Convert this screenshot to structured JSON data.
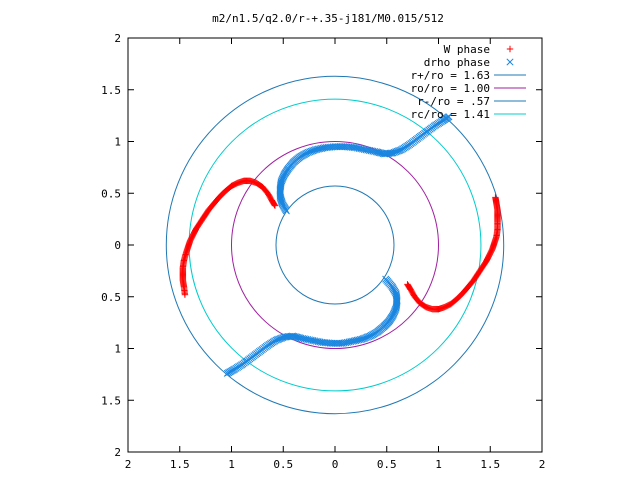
{
  "chart_data": {
    "type": "scatter",
    "title": "m2/n1.5/q2.0/r-+.35-j181/M0.015/512",
    "xlim": [
      -2,
      2
    ],
    "ylim": [
      -2,
      2
    ],
    "x_ticks": [
      {
        "value": -2,
        "label": "2"
      },
      {
        "value": -1.5,
        "label": "1.5"
      },
      {
        "value": -1,
        "label": "1"
      },
      {
        "value": -0.5,
        "label": "0.5"
      },
      {
        "value": 0,
        "label": "0"
      },
      {
        "value": 0.5,
        "label": "0.5"
      },
      {
        "value": 1,
        "label": "1"
      },
      {
        "value": 1.5,
        "label": "1.5"
      },
      {
        "value": 2,
        "label": "2"
      }
    ],
    "y_ticks": [
      {
        "value": 2,
        "label": "2"
      },
      {
        "value": 1.5,
        "label": "1.5"
      },
      {
        "value": 1,
        "label": "1"
      },
      {
        "value": 0.5,
        "label": "0.5"
      },
      {
        "value": 0,
        "label": "0"
      },
      {
        "value": -0.5,
        "label": "0.5"
      },
      {
        "value": -1,
        "label": "1"
      },
      {
        "value": -1.5,
        "label": "1.5"
      },
      {
        "value": -2,
        "label": "2"
      }
    ],
    "grid": false,
    "legend_position": "top-right",
    "circles": [
      {
        "name": "r+/ro = 1.63",
        "radius": 1.63,
        "color": "#1f78b4"
      },
      {
        "name": "ro/ro = 1.00",
        "radius": 1.0,
        "color": "#a020a0"
      },
      {
        "name": "r-/ro = .57",
        "radius": 0.57,
        "color": "#1f78b4"
      },
      {
        "name": "rc/ro = 1.41",
        "radius": 1.41,
        "color": "#00cccc"
      }
    ],
    "series": [
      {
        "name": "W phase",
        "marker": "+",
        "color": "#ff0000",
        "arms": [
          [
            [
              -1.45,
              -0.48
            ],
            [
              -1.46,
              -0.4
            ],
            [
              -1.47,
              -0.34
            ],
            [
              -1.47,
              -0.28
            ],
            [
              -1.47,
              -0.22
            ],
            [
              -1.46,
              -0.15
            ],
            [
              -1.44,
              -0.08
            ],
            [
              -1.42,
              -0.02
            ],
            [
              -1.4,
              0.04
            ],
            [
              -1.37,
              0.1
            ],
            [
              -1.34,
              0.16
            ],
            [
              -1.3,
              0.22
            ],
            [
              -1.26,
              0.28
            ],
            [
              -1.22,
              0.34
            ],
            [
              -1.17,
              0.4
            ],
            [
              -1.12,
              0.46
            ],
            [
              -1.06,
              0.52
            ],
            [
              -1.0,
              0.57
            ],
            [
              -0.94,
              0.6
            ],
            [
              -0.88,
              0.62
            ],
            [
              -0.82,
              0.62
            ],
            [
              -0.76,
              0.6
            ],
            [
              -0.7,
              0.56
            ],
            [
              -0.65,
              0.5
            ],
            [
              -0.61,
              0.43
            ],
            [
              -0.58,
              0.38
            ]
          ],
          [
            [
              1.55,
              0.46
            ],
            [
              1.56,
              0.4
            ],
            [
              1.57,
              0.34
            ],
            [
              1.57,
              0.28
            ],
            [
              1.57,
              0.22
            ],
            [
              1.57,
              0.15
            ],
            [
              1.56,
              0.08
            ],
            [
              1.54,
              0.02
            ],
            [
              1.52,
              -0.04
            ],
            [
              1.49,
              -0.1
            ],
            [
              1.46,
              -0.16
            ],
            [
              1.42,
              -0.22
            ],
            [
              1.38,
              -0.28
            ],
            [
              1.34,
              -0.34
            ],
            [
              1.29,
              -0.4
            ],
            [
              1.24,
              -0.46
            ],
            [
              1.18,
              -0.52
            ],
            [
              1.12,
              -0.57
            ],
            [
              1.06,
              -0.6
            ],
            [
              1.0,
              -0.62
            ],
            [
              0.94,
              -0.62
            ],
            [
              0.88,
              -0.6
            ],
            [
              0.82,
              -0.56
            ],
            [
              0.77,
              -0.5
            ],
            [
              0.73,
              -0.43
            ],
            [
              0.7,
              -0.38
            ]
          ]
        ]
      },
      {
        "name": "drho phase",
        "marker": "x",
        "color": "#1a86e0",
        "arms": [
          [
            [
              -0.47,
              0.33
            ],
            [
              -0.51,
              0.4
            ],
            [
              -0.53,
              0.47
            ],
            [
              -0.53,
              0.54
            ],
            [
              -0.52,
              0.61
            ],
            [
              -0.49,
              0.68
            ],
            [
              -0.45,
              0.74
            ],
            [
              -0.4,
              0.8
            ],
            [
              -0.34,
              0.85
            ],
            [
              -0.27,
              0.89
            ],
            [
              -0.19,
              0.92
            ],
            [
              -0.1,
              0.94
            ],
            [
              0.0,
              0.95
            ],
            [
              0.1,
              0.95
            ],
            [
              0.2,
              0.94
            ],
            [
              0.3,
              0.92
            ],
            [
              0.4,
              0.9
            ],
            [
              0.48,
              0.88
            ],
            [
              0.56,
              0.89
            ],
            [
              0.64,
              0.92
            ],
            [
              0.72,
              0.97
            ],
            [
              0.8,
              1.03
            ],
            [
              0.88,
              1.09
            ],
            [
              0.96,
              1.15
            ],
            [
              1.04,
              1.2
            ],
            [
              1.1,
              1.24
            ]
          ],
          [
            [
              0.49,
              -0.33
            ],
            [
              0.55,
              -0.4
            ],
            [
              0.59,
              -0.47
            ],
            [
              0.6,
              -0.54
            ],
            [
              0.59,
              -0.61
            ],
            [
              0.56,
              -0.68
            ],
            [
              0.52,
              -0.74
            ],
            [
              0.47,
              -0.79
            ],
            [
              0.41,
              -0.84
            ],
            [
              0.34,
              -0.88
            ],
            [
              0.26,
              -0.91
            ],
            [
              0.17,
              -0.93
            ],
            [
              0.07,
              -0.95
            ],
            [
              -0.03,
              -0.95
            ],
            [
              -0.13,
              -0.94
            ],
            [
              -0.23,
              -0.92
            ],
            [
              -0.33,
              -0.9
            ],
            [
              -0.41,
              -0.88
            ],
            [
              -0.49,
              -0.89
            ],
            [
              -0.57,
              -0.92
            ],
            [
              -0.65,
              -0.97
            ],
            [
              -0.73,
              -1.03
            ],
            [
              -0.81,
              -1.09
            ],
            [
              -0.89,
              -1.15
            ],
            [
              -0.97,
              -1.2
            ],
            [
              -1.04,
              -1.24
            ]
          ]
        ]
      }
    ]
  }
}
